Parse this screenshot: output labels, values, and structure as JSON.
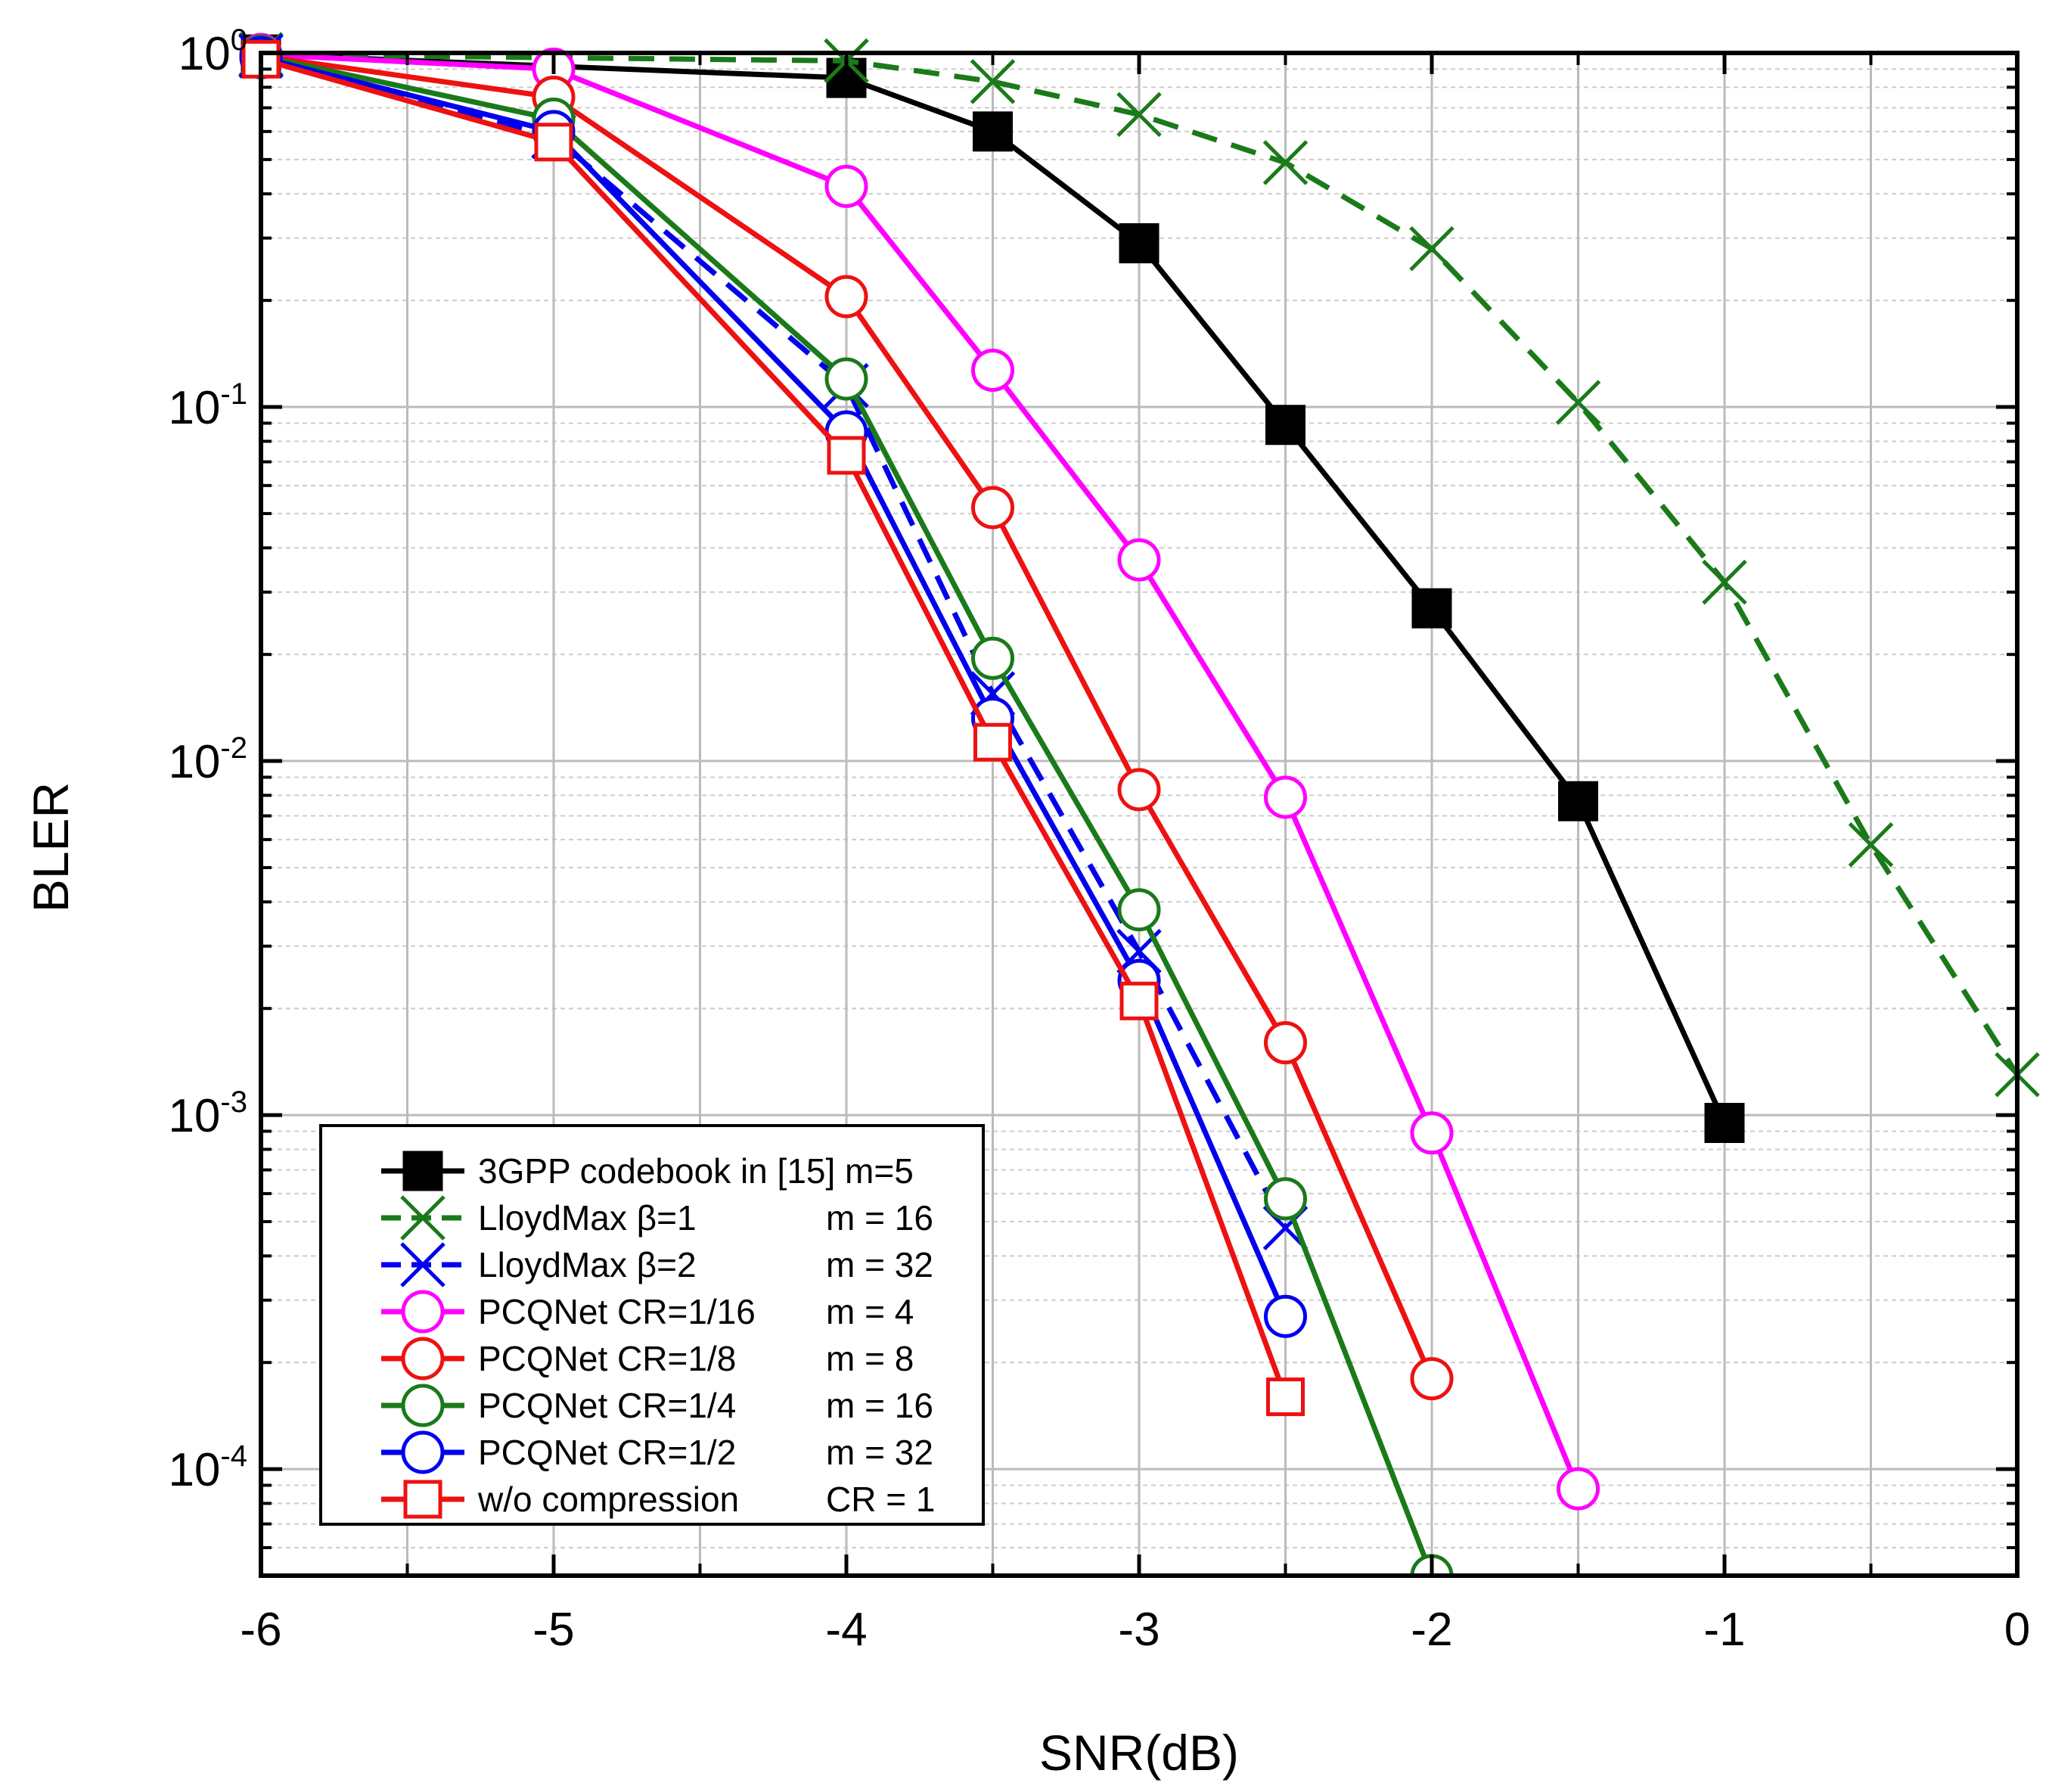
{
  "chart_data": {
    "type": "line",
    "title": "",
    "xlabel": "SNR(dB)",
    "ylabel": "BLER",
    "xlim": [
      -6,
      0
    ],
    "ylim": [
      5e-05,
      1
    ],
    "yscale": "log",
    "grid": true,
    "legend_position": "bottom-left",
    "x_ticks": [
      {
        "value": -6,
        "label": "-6"
      },
      {
        "value": -5,
        "label": "-5"
      },
      {
        "value": -4,
        "label": "-4"
      },
      {
        "value": -3,
        "label": "-3"
      },
      {
        "value": -2,
        "label": "-2"
      },
      {
        "value": -1,
        "label": "-1"
      },
      {
        "value": 0,
        "label": "0"
      }
    ],
    "y_ticks": [
      {
        "value": 1,
        "base": "10",
        "exp": "0"
      },
      {
        "value": 0.1,
        "base": "10",
        "exp": "-1"
      },
      {
        "value": 0.01,
        "base": "10",
        "exp": "-2"
      },
      {
        "value": 0.001,
        "base": "10",
        "exp": "-3"
      },
      {
        "value": 0.0001,
        "base": "10",
        "exp": "-4"
      }
    ],
    "series": [
      {
        "name": "3GPP codebook in [15] m=5",
        "legend_name": "3GPP codebook in [15] m=5",
        "legend_param": "",
        "color": "#000000",
        "marker": "square-filled",
        "dash": false,
        "x": [
          -6,
          -4,
          -3.5,
          -3,
          -2.5,
          -2,
          -1.5,
          -1
        ],
        "y": [
          0.99,
          0.85,
          0.6,
          0.29,
          0.089,
          0.027,
          0.0077,
          0.00095
        ]
      },
      {
        "name": "LloydMax β=1 m = 16",
        "legend_name": "LloydMax  β=1",
        "legend_param": "m = 16",
        "color": "#1a7a1a",
        "marker": "x",
        "dash": true,
        "x": [
          -6,
          -4,
          -3.5,
          -3,
          -2.5,
          -2,
          -1.5,
          -1,
          -0.5,
          0
        ],
        "y": [
          0.99,
          0.95,
          0.83,
          0.67,
          0.49,
          0.28,
          0.103,
          0.032,
          0.0058,
          0.0013
        ]
      },
      {
        "name": "LloydMax β=2 m = 32",
        "legend_name": "LloydMax  β=2",
        "legend_param": "m = 32",
        "color": "#0000ee",
        "marker": "x",
        "dash": true,
        "x": [
          -6,
          -5,
          -4,
          -3.5,
          -3,
          -2.5
        ],
        "y": [
          0.98,
          0.58,
          0.115,
          0.0155,
          0.0029,
          0.00048
        ]
      },
      {
        "name": "PCQNet CR=1/16 m = 4",
        "legend_name": "PCQNet   CR=1/16",
        "legend_param": "m = 4",
        "color": "#ff00ff",
        "marker": "circle",
        "dash": false,
        "x": [
          -6,
          -5,
          -4,
          -3.5,
          -3,
          -2.5,
          -2,
          -1.5
        ],
        "y": [
          0.99,
          0.9,
          0.42,
          0.127,
          0.037,
          0.0079,
          0.00089,
          8.8e-05
        ]
      },
      {
        "name": "PCQNet CR=1/8 m = 8",
        "legend_name": "PCQNet   CR=1/8",
        "legend_param": "m = 8",
        "color": "#ee1111",
        "marker": "circle",
        "dash": false,
        "x": [
          -6,
          -5,
          -4,
          -3.5,
          -3,
          -2.5,
          -2
        ],
        "y": [
          0.98,
          0.75,
          0.205,
          0.052,
          0.0083,
          0.0016,
          0.00018
        ]
      },
      {
        "name": "PCQNet CR=1/4 m = 16",
        "legend_name": "PCQNet   CR=1/4",
        "legend_param": "m = 16",
        "color": "#1a7a1a",
        "marker": "circle",
        "dash": false,
        "x": [
          -6,
          -5,
          -4,
          -3.5,
          -3,
          -2.5,
          -2
        ],
        "y": [
          0.98,
          0.65,
          0.12,
          0.0195,
          0.0038,
          0.00058,
          5e-05
        ]
      },
      {
        "name": "PCQNet CR=1/2 m = 32",
        "legend_name": "PCQNet   CR=1/2",
        "legend_param": "m = 32",
        "color": "#0000ee",
        "marker": "circle",
        "dash": false,
        "x": [
          -6,
          -5,
          -4,
          -3.5,
          -3,
          -2.5
        ],
        "y": [
          0.97,
          0.6,
          0.085,
          0.0132,
          0.0024,
          0.00027
        ]
      },
      {
        "name": "w/o compression CR = 1",
        "legend_name": "w/o compression",
        "legend_param": "CR = 1",
        "color": "#ee1111",
        "marker": "square",
        "dash": false,
        "x": [
          -6,
          -5,
          -4,
          -3.5,
          -3,
          -2.5
        ],
        "y": [
          0.96,
          0.56,
          0.073,
          0.0113,
          0.0021,
          0.00016
        ]
      }
    ]
  }
}
